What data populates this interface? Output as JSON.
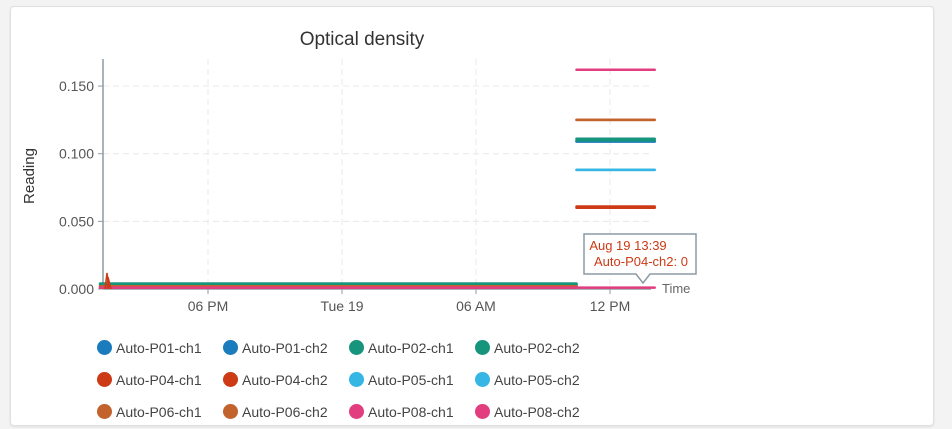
{
  "chart_data": {
    "type": "line",
    "title": "Optical density",
    "ylabel": "Reading",
    "xlabel": "Time",
    "ylim": [
      0,
      0.17
    ],
    "x_ticks": [
      "06 PM",
      "Tue 19",
      "06 AM",
      "12 PM"
    ],
    "y_ticks": [
      "0.000",
      "0.050",
      "0.100",
      "0.150"
    ],
    "grid": true,
    "legend_placement": "bottom",
    "series": [
      {
        "name": "Auto-P01-ch1",
        "color": "#1a7bbd",
        "segments": [
          {
            "x": [
              "Aug 18 13:10",
              "Aug 19 10:30"
            ],
            "y": [
              0.003,
              0.003
            ]
          },
          {
            "x": [
              "Aug 19 10:30",
              "Aug 19 14:00"
            ],
            "y": [
              0.109,
              0.109
            ]
          }
        ]
      },
      {
        "name": "Auto-P01-ch2",
        "color": "#1a7bbd",
        "segments": [
          {
            "x": [
              "Aug 18 13:10",
              "Aug 19 10:30"
            ],
            "y": [
              0.003,
              0.003
            ]
          },
          {
            "x": [
              "Aug 19 10:30",
              "Aug 19 14:00"
            ],
            "y": [
              0.109,
              0.109
            ]
          }
        ]
      },
      {
        "name": "Auto-P02-ch1",
        "color": "#16957c",
        "segments": [
          {
            "x": [
              "Aug 18 13:10",
              "Aug 19 10:30"
            ],
            "y": [
              0.004,
              0.004
            ]
          },
          {
            "x": [
              "Aug 19 10:30",
              "Aug 19 14:00"
            ],
            "y": [
              0.111,
              0.111
            ]
          }
        ]
      },
      {
        "name": "Auto-P02-ch2",
        "color": "#16957c",
        "segments": [
          {
            "x": [
              "Aug 18 13:10",
              "Aug 19 10:30"
            ],
            "y": [
              0.004,
              0.004
            ]
          },
          {
            "x": [
              "Aug 19 10:30",
              "Aug 19 14:00"
            ],
            "y": [
              0.11,
              0.11
            ]
          }
        ]
      },
      {
        "name": "Auto-P04-ch1",
        "color": "#cc3a16",
        "segments": [
          {
            "x": [
              "Aug 18 13:10",
              "Aug 19 10:30"
            ],
            "y": [
              0.001,
              0.001
            ]
          },
          {
            "x": [
              "Aug 19 10:30",
              "Aug 19 14:00"
            ],
            "y": [
              0.061,
              0.061
            ]
          }
        ]
      },
      {
        "name": "Auto-P04-ch2",
        "color": "#cc3a16",
        "segments": [
          {
            "x": [
              "Aug 18 13:10",
              "Aug 19 10:30"
            ],
            "y": [
              0.001,
              0.001
            ]
          },
          {
            "x": [
              "Aug 19 10:30",
              "Aug 19 14:00"
            ],
            "y": [
              0.06,
              0.06
            ]
          }
        ]
      },
      {
        "name": "Auto-P05-ch1",
        "color": "#35b6e5",
        "segments": [
          {
            "x": [
              "Aug 18 13:10",
              "Aug 19 10:30"
            ],
            "y": [
              0.002,
              0.002
            ]
          },
          {
            "x": [
              "Aug 19 10:30",
              "Aug 19 14:00"
            ],
            "y": [
              0.088,
              0.088
            ]
          }
        ]
      },
      {
        "name": "Auto-P05-ch2",
        "color": "#35b6e5",
        "segments": [
          {
            "x": [
              "Aug 18 13:10",
              "Aug 19 10:30"
            ],
            "y": [
              0.002,
              0.002
            ]
          },
          {
            "x": [
              "Aug 19 10:30",
              "Aug 19 14:00"
            ],
            "y": [
              0.088,
              0.088
            ]
          }
        ]
      },
      {
        "name": "Auto-P06-ch1",
        "color": "#c2622d",
        "segments": [
          {
            "x": [
              "Aug 18 13:10",
              "Aug 19 10:30"
            ],
            "y": [
              0.002,
              0.002
            ]
          },
          {
            "x": [
              "Aug 19 10:30",
              "Aug 19 14:00"
            ],
            "y": [
              0.125,
              0.125
            ]
          }
        ]
      },
      {
        "name": "Auto-P06-ch2",
        "color": "#c2622d",
        "segments": [
          {
            "x": [
              "Aug 18 13:10",
              "Aug 19 10:30"
            ],
            "y": [
              0.002,
              0.002
            ]
          },
          {
            "x": [
              "Aug 19 10:30",
              "Aug 19 14:00"
            ],
            "y": [
              0.125,
              0.125
            ]
          }
        ]
      },
      {
        "name": "Auto-P08-ch1",
        "color": "#e23d7e",
        "segments": [
          {
            "x": [
              "Aug 18 13:10",
              "Aug 19 10:30"
            ],
            "y": [
              0.001,
              0.001
            ]
          },
          {
            "x": [
              "Aug 19 10:30",
              "Aug 19 14:00"
            ],
            "y": [
              0.162,
              0.162
            ]
          }
        ]
      },
      {
        "name": "Auto-P08-ch2",
        "color": "#e23d7e",
        "segments": [
          {
            "x": [
              "Aug 18 13:10",
              "Aug 19 10:30"
            ],
            "y": [
              0.001,
              0.001
            ]
          },
          {
            "x": [
              "Aug 19 10:30",
              "Aug 19 14:00"
            ],
            "y": [
              0.001,
              0.001
            ]
          }
        ]
      }
    ],
    "tooltip": {
      "line1": "Aug 19 13:39",
      "line2": "Auto-P04-ch2: 0"
    }
  }
}
